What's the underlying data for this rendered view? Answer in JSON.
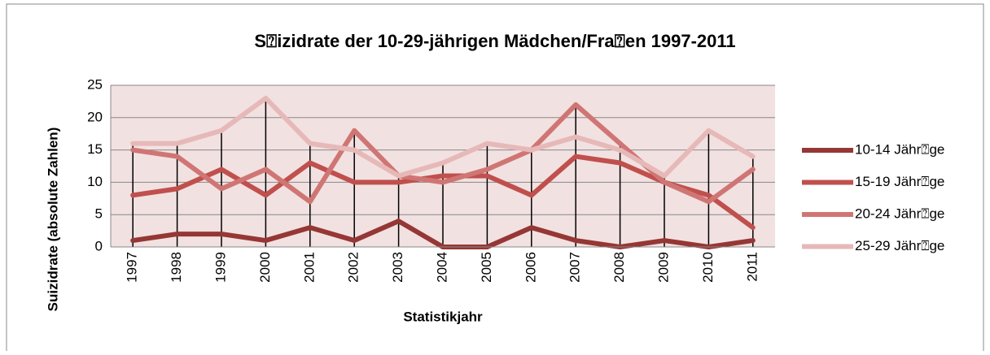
{
  "chart_data": {
    "type": "line",
    "title": "S⍰izidrate der 10-29-jährigen Mädchen/Fra⍰en 1997-2011",
    "x_label": "Statistikjahr",
    "y_label": "Suizidrate (absolute Zahlen)",
    "categories": [
      "1997",
      "1998",
      "1999",
      "2000",
      "2001",
      "2002",
      "2003",
      "2004",
      "2005",
      "2006",
      "2007",
      "2008",
      "2009",
      "2010",
      "2011"
    ],
    "series": [
      {
        "name": "10-14 Jähr⍰ge",
        "color": "#953735",
        "values": [
          1,
          2,
          2,
          1,
          3,
          1,
          4,
          0,
          0,
          3,
          1,
          0,
          1,
          0,
          1
        ]
      },
      {
        "name": "15-19 Jähr⍰ge",
        "color": "#c0504d",
        "values": [
          8,
          9,
          12,
          8,
          13,
          10,
          10,
          11,
          11,
          8,
          14,
          13,
          10,
          8,
          3
        ]
      },
      {
        "name": "20-24 Jähr⍰ge",
        "color": "#cf7674",
        "values": [
          15,
          14,
          9,
          12,
          7,
          18,
          11,
          10,
          12,
          15,
          22,
          16,
          10,
          7,
          12
        ]
      },
      {
        "name": "25-29 Jähr⍰ge",
        "color": "#e6b9b8",
        "values": [
          16,
          16,
          18,
          23,
          16,
          15,
          11,
          13,
          16,
          15,
          17,
          15,
          11,
          18,
          14
        ]
      }
    ],
    "ylim": [
      0,
      25
    ],
    "yticks": [
      0,
      5,
      10,
      15,
      20,
      25
    ],
    "grid": true,
    "legend": "right"
  }
}
